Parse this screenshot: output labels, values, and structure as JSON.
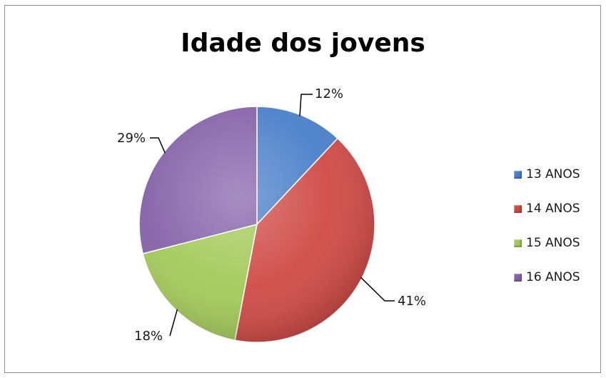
{
  "chart_data": {
    "type": "pie",
    "title": "Idade dos jovens",
    "categories": [
      "13 ANOS",
      "14 ANOS",
      "15 ANOS",
      "16 ANOS"
    ],
    "values": [
      12,
      41,
      18,
      29
    ],
    "labels": [
      "12%",
      "41%",
      "18%",
      "29%"
    ],
    "colors": [
      "#4a7fc9",
      "#cf4a46",
      "#a4c95a",
      "#8462a8"
    ],
    "legend_position": "right",
    "start_angle": "top",
    "direction": "clockwise"
  }
}
